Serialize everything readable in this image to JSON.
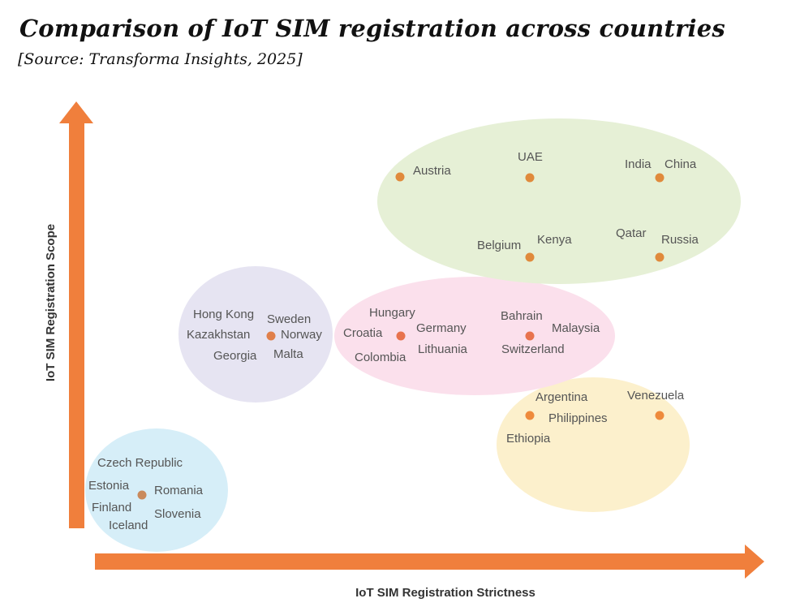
{
  "title": "Comparison of IoT SIM registration across countries",
  "subtitle": "[Source: Transforma Insights, 2025]",
  "axes": {
    "x_label": "IoT SIM Registration Strictness",
    "y_label": "IoT SIM Registration Scope"
  },
  "colors": {
    "arrow": "#F07F3C",
    "cluster_blue": "#D6EEF8",
    "cluster_purple": "#E6E4F2",
    "cluster_pink": "#FBE0EC",
    "cluster_green": "#E6F0D6",
    "cluster_yellow": "#FCF0CC",
    "dot_orange": "#EE8A3C",
    "dot_brown": "#C98A5C"
  },
  "clusters": {
    "blue": [
      "Czech Republic",
      "Estonia",
      "Romania",
      "Finland",
      "Slovenia",
      "Iceland"
    ],
    "purple": [
      "Hong Kong",
      "Sweden",
      "Kazakhstan",
      "Norway",
      "Georgia",
      "Malta"
    ],
    "pink_left": [
      "Hungary",
      "Croatia",
      "Germany",
      "Colombia",
      "Lithuania"
    ],
    "pink_right": [
      "Bahrain",
      "Malaysia",
      "Switzerland"
    ],
    "green": [
      "Austria",
      "UAE",
      "India",
      "China",
      "Belgium",
      "Kenya",
      "Qatar",
      "Russia"
    ],
    "yellow_left": [
      "Argentina",
      "Philippines",
      "Ethiopia"
    ],
    "yellow_right": [
      "Venezuela"
    ]
  }
}
